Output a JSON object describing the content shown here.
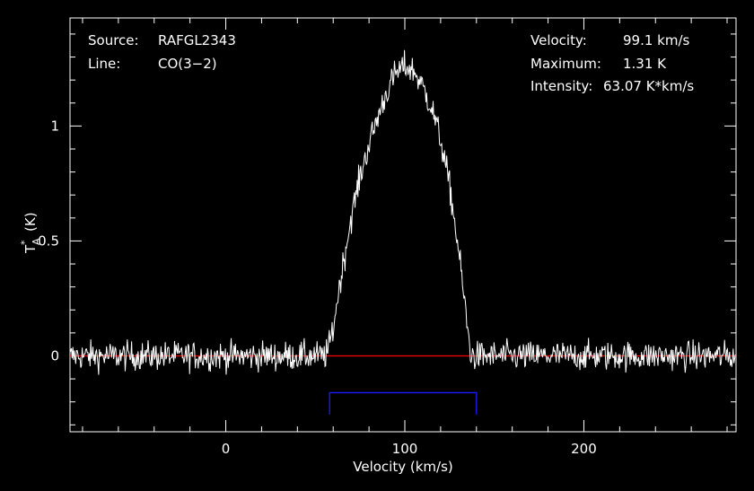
{
  "chart_data": {
    "type": "line",
    "xlabel": "Velocity (km/s)",
    "ylabel_main": "T",
    "ylabel_sub": "A",
    "ylabel_sup": "*",
    "ylabel_unit": "(K)",
    "xlim": [
      -87,
      285
    ],
    "ylim": [
      -0.33,
      1.47
    ],
    "x_ticks": [
      0,
      100,
      200
    ],
    "y_ticks": [
      0,
      0.5,
      1
    ],
    "x_tick_labels": [
      "0",
      "100",
      "200"
    ],
    "y_tick_labels": [
      "0",
      "0.5",
      "1"
    ],
    "baseline_y": 0,
    "baseline_color": "#ff0000",
    "spectrum_color": "#ffffff",
    "window": {
      "x_start": 58,
      "x_end": 140,
      "y": -0.16,
      "y_bottom": -0.255,
      "color": "#1c1cff"
    },
    "spectrum": {
      "x_start": -87,
      "x_end": 285,
      "step": 0.4,
      "noise_rms": 0.045,
      "profile": {
        "center": 100,
        "peak": 1.27,
        "onset_left": 55,
        "onset_right": 137,
        "peak_points": [
          [
            55,
            0
          ],
          [
            57,
            0.02
          ],
          [
            60,
            0.12
          ],
          [
            63,
            0.28
          ],
          [
            66,
            0.42
          ],
          [
            70,
            0.6
          ],
          [
            75,
            0.78
          ],
          [
            80,
            0.92
          ],
          [
            85,
            1.04
          ],
          [
            90,
            1.15
          ],
          [
            95,
            1.23
          ],
          [
            100,
            1.26
          ],
          [
            105,
            1.24
          ],
          [
            110,
            1.17
          ],
          [
            115,
            1.08
          ],
          [
            120,
            0.94
          ],
          [
            125,
            0.74
          ],
          [
            130,
            0.46
          ],
          [
            133,
            0.26
          ],
          [
            135,
            0.12
          ],
          [
            137,
            0
          ]
        ]
      }
    }
  },
  "info": {
    "source_label": "Source:",
    "source_value": "RAFGL2343",
    "line_label": "Line:",
    "line_value": "CO(3−2)",
    "velocity_label": "Velocity:",
    "velocity_value": "99.1 km/s",
    "maximum_label": "Maximum:",
    "maximum_value": "1.31 K",
    "intensity_label": "Intensity:",
    "intensity_value": "63.07 K*km/s"
  }
}
